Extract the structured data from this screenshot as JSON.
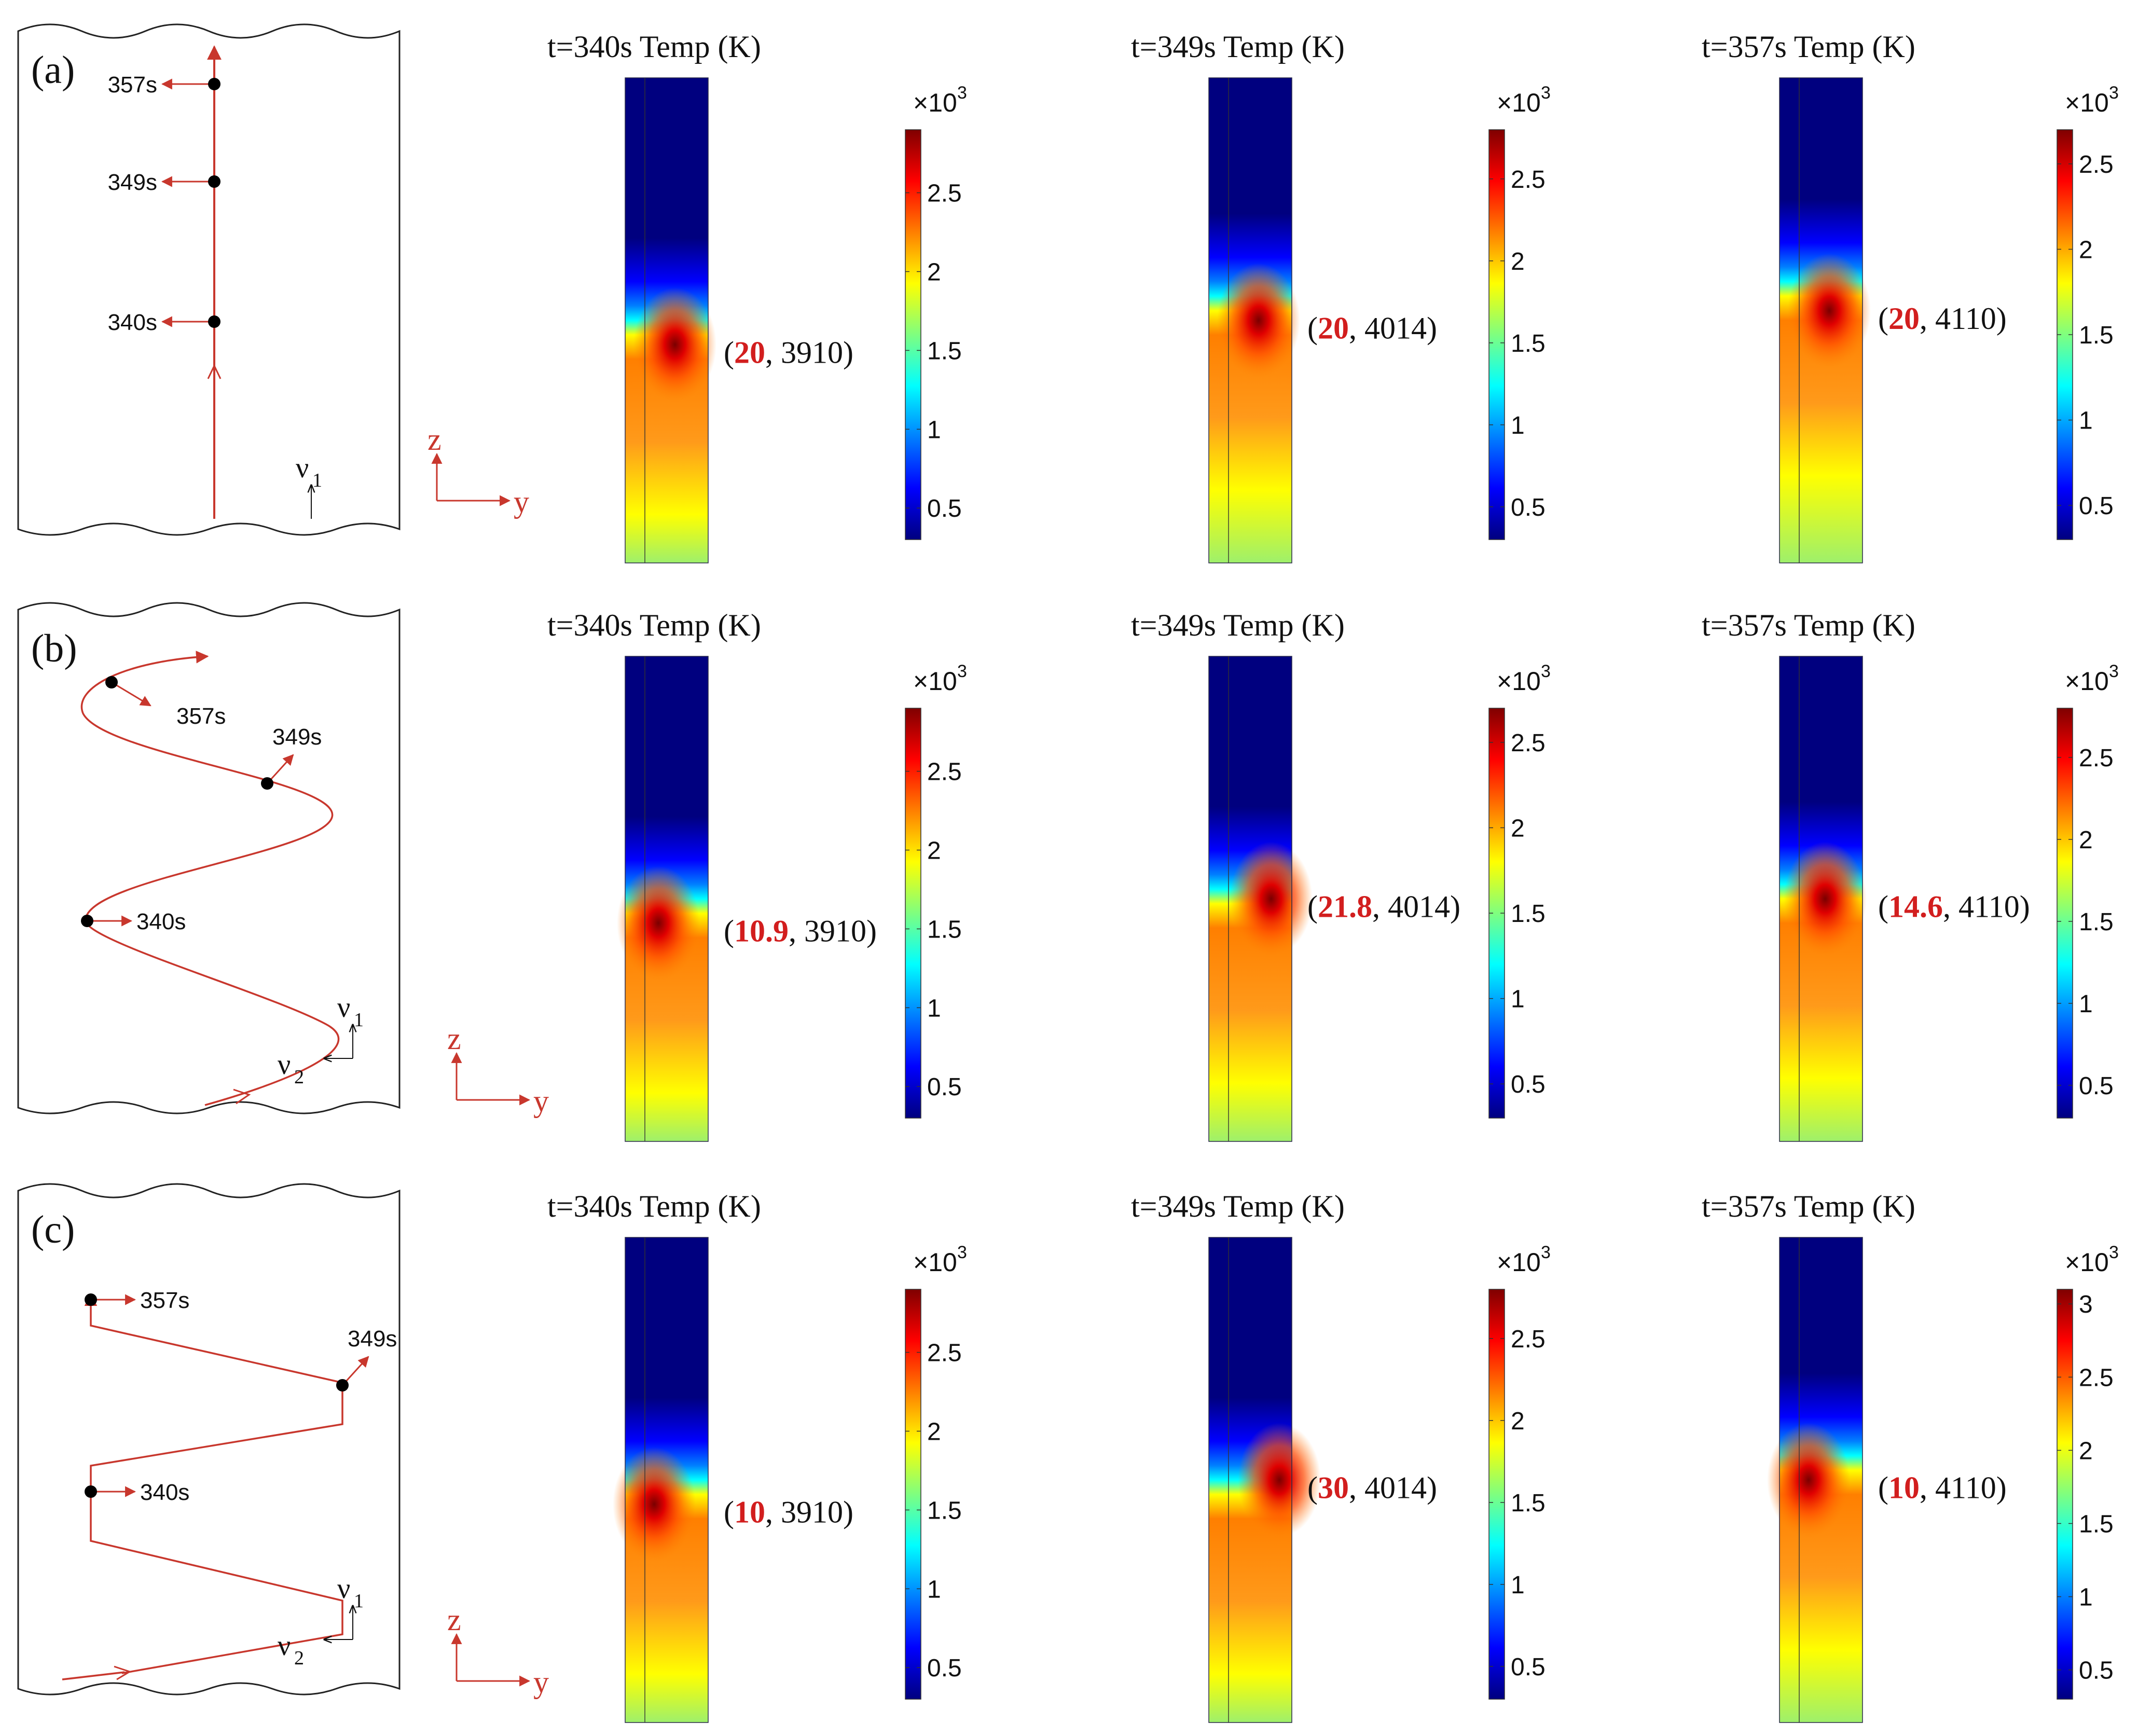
{
  "colors": {
    "path": "#c8372d",
    "marker": "#000000",
    "highlight": "#d21e1e",
    "outline": "#222222"
  },
  "colormap": [
    "#00007f",
    "#0000ff",
    "#007fff",
    "#00ffff",
    "#7fff7f",
    "#ffff00",
    "#ff7f00",
    "#ff0000",
    "#7f0000"
  ],
  "common": {
    "axis_z": "z",
    "axis_y": "y",
    "velocity_1": "ν",
    "velocity_2": "ν",
    "velocity_sub_1": "1",
    "velocity_sub_2": "2",
    "cbar_scale_base": "×10",
    "cbar_scale_exp": "3"
  },
  "rows": [
    {
      "label": "(a)",
      "path_type": "straight",
      "marker_labels": [
        "357s",
        "349s",
        "340s"
      ],
      "show_v2": false,
      "plots": [
        {
          "title": "t=340s  Temp (K)",
          "coord_highlight": "20",
          "coord_rest": ", 3910)",
          "cbar_ticks": [
            "2.5",
            "2",
            "1.5",
            "1",
            "0.5"
          ],
          "cbar_max": 2.9,
          "hot_spot": [
            0.6,
            0.55
          ],
          "front": 0.5
        },
        {
          "title": "t=349s  Temp (K)",
          "coord_highlight": "20",
          "coord_rest": ", 4014)",
          "cbar_ticks": [
            "2.5",
            "2",
            "1.5",
            "1",
            "0.5"
          ],
          "cbar_max": 2.8,
          "hot_spot": [
            0.6,
            0.5
          ],
          "front": 0.45
        },
        {
          "title": "t=357s  Temp (K)",
          "coord_highlight": "20",
          "coord_rest": ", 4110)",
          "cbar_ticks": [
            "2.5",
            "2",
            "1.5",
            "1",
            "0.5"
          ],
          "cbar_max": 2.7,
          "hot_spot": [
            0.6,
            0.48
          ],
          "front": 0.42
        }
      ]
    },
    {
      "label": "(b)",
      "path_type": "sine",
      "marker_labels": [
        "357s",
        "349s",
        "340s"
      ],
      "show_v2": true,
      "plots": [
        {
          "title": "t=340s  Temp (K)",
          "coord_highlight": "10.9",
          "coord_rest": ", 3910)",
          "cbar_ticks": [
            "2.5",
            "2",
            "1.5",
            "1",
            "0.5"
          ],
          "cbar_max": 2.9,
          "hot_spot": [
            0.4,
            0.55
          ],
          "front": 0.5
        },
        {
          "title": "t=349s  Temp (K)",
          "coord_highlight": "21.8",
          "coord_rest": ", 4014)",
          "cbar_ticks": [
            "2.5",
            "2",
            "1.5",
            "1",
            "0.5"
          ],
          "cbar_max": 2.7,
          "hot_spot": [
            0.75,
            0.5
          ],
          "front": 0.48
        },
        {
          "title": "t=357s  Temp (K)",
          "coord_highlight": "14.6",
          "coord_rest": ", 4110)",
          "cbar_ticks": [
            "2.5",
            "2",
            "1.5",
            "1",
            "0.5"
          ],
          "cbar_max": 2.8,
          "hot_spot": [
            0.55,
            0.5
          ],
          "front": 0.47
        }
      ]
    },
    {
      "label": "(c)",
      "path_type": "zigzag",
      "marker_labels": [
        "357s",
        "349s",
        "340s"
      ],
      "show_v2": true,
      "plots": [
        {
          "title": "t=340s  Temp (K)",
          "coord_highlight": "10",
          "coord_rest": ", 3910)",
          "cbar_ticks": [
            "2.5",
            "2",
            "1.5",
            "1",
            "0.5"
          ],
          "cbar_max": 2.9,
          "hot_spot": [
            0.35,
            0.55
          ],
          "front": 0.5
        },
        {
          "title": "t=349s  Temp (K)",
          "coord_highlight": "30",
          "coord_rest": ", 4014)",
          "cbar_ticks": [
            "2.5",
            "2",
            "1.5",
            "1",
            "0.5"
          ],
          "cbar_max": 2.8,
          "hot_spot": [
            0.85,
            0.5
          ],
          "front": 0.5
        },
        {
          "title": "t=357s  Temp (K)",
          "coord_highlight": "10",
          "coord_rest": ", 4110)",
          "cbar_ticks": [
            "3",
            "2.5",
            "2",
            "1.5",
            "1",
            "0.5"
          ],
          "cbar_max": 3.1,
          "hot_spot": [
            0.35,
            0.5
          ],
          "front": 0.45
        }
      ]
    }
  ]
}
